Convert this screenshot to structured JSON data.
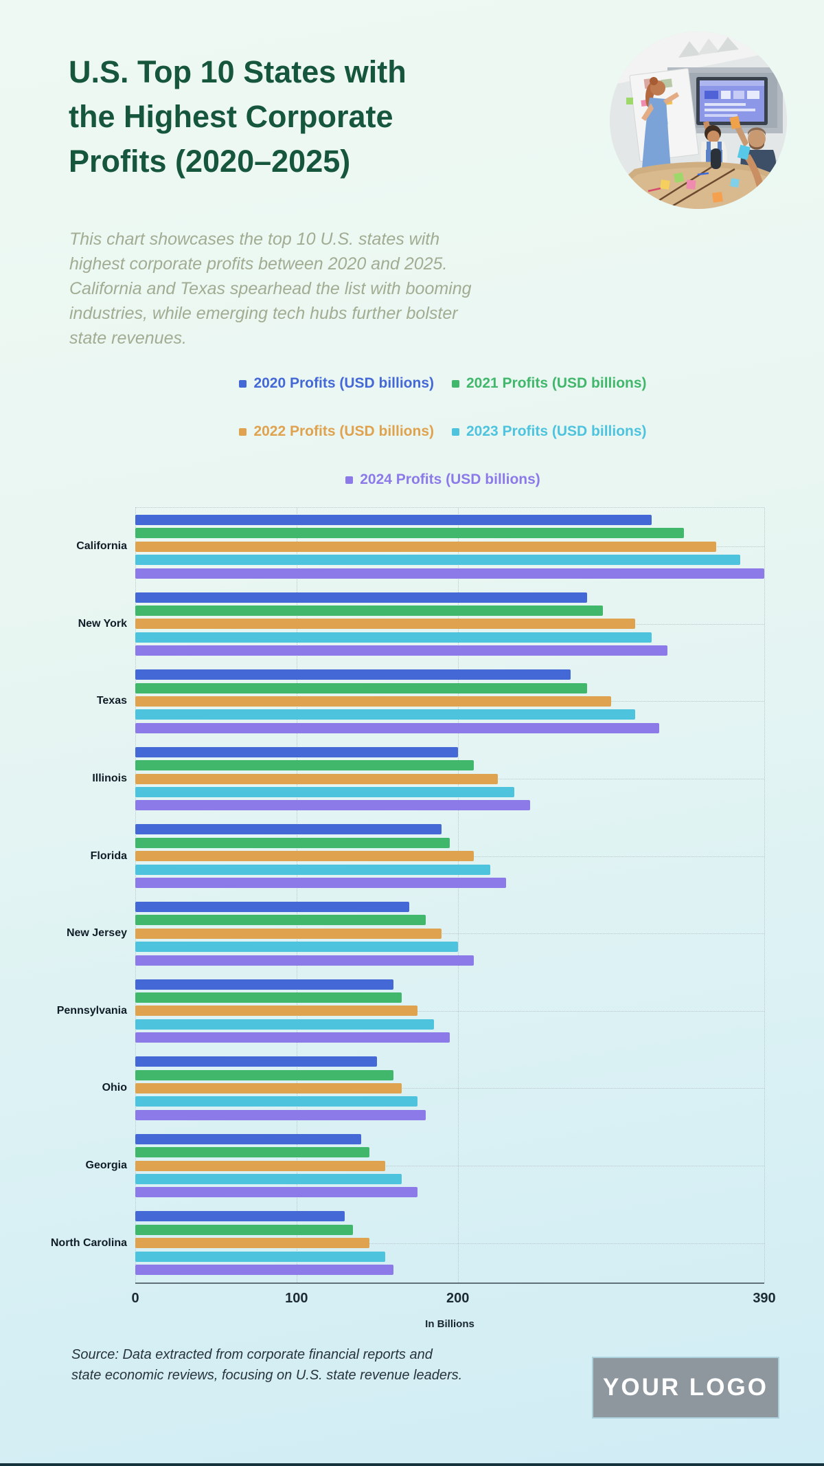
{
  "header": {
    "title_lines": [
      "U.S. Top 10 States with",
      "the Highest Corporate",
      "Profits (2020–2025)"
    ],
    "description_lines": [
      "This chart showcases the top 10 U.S. states with",
      "highest corporate profits between 2020 and 2025.",
      "California and Texas spearhead the list with booming",
      "industries, while emerging tech hubs further bolster",
      "state revenues."
    ],
    "photo": "team-meeting-photo"
  },
  "chart_data": {
    "type": "bar",
    "orientation": "horizontal",
    "categories": [
      "California",
      "New York",
      "Texas",
      "Illinois",
      "Florida",
      "New Jersey",
      "Pennsylvania",
      "Ohio",
      "Georgia",
      "North Carolina"
    ],
    "series": [
      {
        "name": "2020 Profits (USD billions)",
        "color": "#4468d5",
        "values": [
          320,
          280,
          270,
          200,
          190,
          170,
          160,
          150,
          140,
          130
        ]
      },
      {
        "name": "2021 Profits (USD billions)",
        "color": "#41b76c",
        "values": [
          340,
          290,
          280,
          210,
          195,
          180,
          165,
          160,
          145,
          135
        ]
      },
      {
        "name": "2022 Profits (USD billions)",
        "color": "#dfa24f",
        "values": [
          360,
          310,
          295,
          225,
          210,
          190,
          175,
          165,
          155,
          145
        ]
      },
      {
        "name": "2023 Profits (USD billions)",
        "color": "#4dc3de",
        "values": [
          375,
          320,
          310,
          235,
          220,
          200,
          185,
          175,
          165,
          155
        ]
      },
      {
        "name": "2024 Profits (USD billions)",
        "color": "#8c7ae8",
        "values": [
          390,
          330,
          325,
          245,
          230,
          210,
          195,
          180,
          175,
          160
        ]
      }
    ],
    "xlabel": "In Billions",
    "x_ticks": [
      0,
      100,
      200,
      390
    ],
    "xlim": [
      0,
      390
    ],
    "grid": "dotted",
    "legend_position": "top-center",
    "legend_rows": [
      [
        0,
        1
      ],
      [
        2,
        3
      ],
      [
        4
      ]
    ]
  },
  "footer": {
    "source_lines": [
      "Source: Data extracted from corporate financial reports and",
      "state economic reviews, focusing on U.S. state revenue leaders."
    ],
    "logo_text": "YOUR LOGO"
  },
  "colors": {
    "title": "#15563c",
    "description": "#a2ac92",
    "background_top": "#eff9f3",
    "background_bottom": "#d0ecf4",
    "axis": "#5f7077",
    "gridline": "#b9c7cb"
  }
}
